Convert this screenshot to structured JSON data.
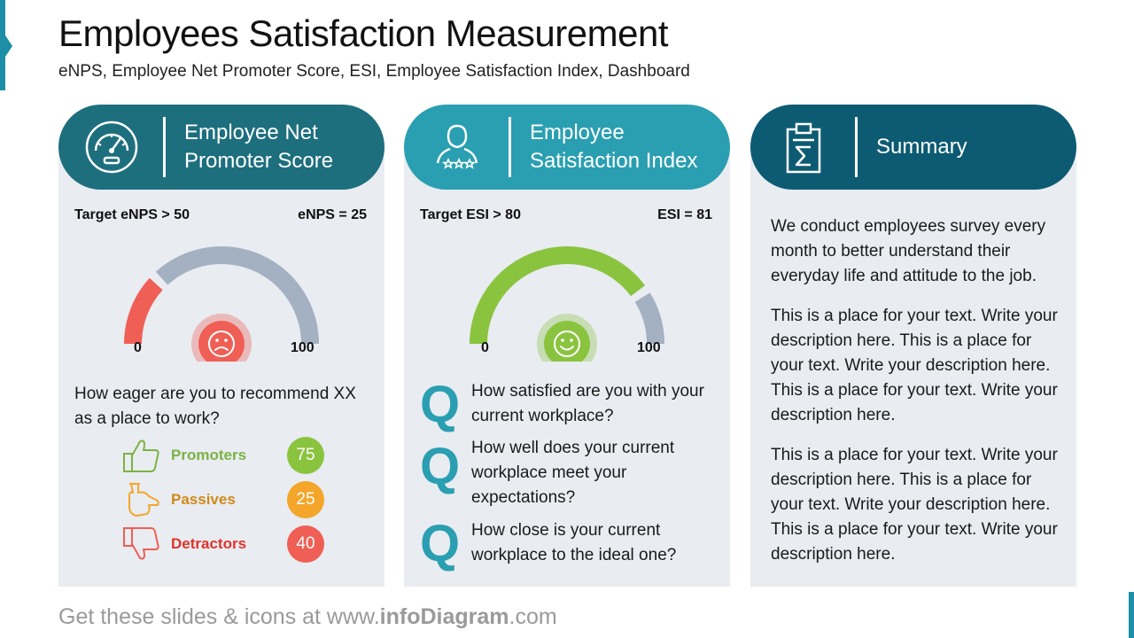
{
  "header": {
    "title": "Employees Satisfaction Measurement",
    "subtitle": "eNPS, Employee Net Promoter Score, ESI, Employee Satisfaction Index, Dashboard"
  },
  "colors": {
    "enps_header": "#1e6f7e",
    "esi_header": "#2a9fb1",
    "summary_header": "#0d5b73",
    "card_bg": "#e9ecf1",
    "gauge_track": "#a3b1c2",
    "detractor_red": "#ef5f55",
    "promoter_green": "#8ac43f",
    "passive_orange": "#f4a62a"
  },
  "enps": {
    "title": "Employee Net Promoter Score",
    "icon": "speedometer-icon",
    "target": "Target eNPS > 50",
    "score_label": "eNPS = 25",
    "value": 25,
    "min": "0",
    "max": "100",
    "gauge_range": [
      0,
      100
    ],
    "face": "sad-face-icon",
    "question": "How eager are you to recommend XX as a place to work?",
    "legend": [
      {
        "label": "Promoters",
        "value": "75",
        "icon": "thumbs-up-icon",
        "color": "#7cb342"
      },
      {
        "label": "Passives",
        "value": "25",
        "icon": "pointing-hand-icon",
        "color": "#f4a62a"
      },
      {
        "label": "Detractors",
        "value": "40",
        "icon": "thumbs-down-icon",
        "color": "#ef5f55"
      }
    ]
  },
  "esi": {
    "title": "Employee Satisfaction Index",
    "icon": "user-rating-icon",
    "target": "Target ESI > 80",
    "score_label": "ESI = 81",
    "value": 81,
    "min": "0",
    "max": "100",
    "gauge_range": [
      0,
      100
    ],
    "face": "happy-face-icon",
    "questions": [
      {
        "letter": "Q",
        "text": "How satisfied are you with your current workplace?"
      },
      {
        "letter": "Q",
        "text": "How well does your current workplace meet your expectations?"
      },
      {
        "letter": "Q",
        "text": "How close is your current workplace to the ideal one?"
      }
    ]
  },
  "summary": {
    "title": "Summary",
    "icon": "clipboard-sigma-icon",
    "paragraphs": [
      "We conduct employees survey every month to better understand their everyday life and attitude to the job.",
      "This is a place for your text. Write your description here. This is a place for your text. Write your description here. This is a place for your text. Write your description here.",
      "This is a place for your text. Write your description here. This is a place for your text. Write your description here. This is a place for your text. Write your description here."
    ]
  },
  "footer": {
    "prefix": "Get these slides & icons at www.",
    "brand": "infoDiagram",
    "suffix": ".com"
  }
}
